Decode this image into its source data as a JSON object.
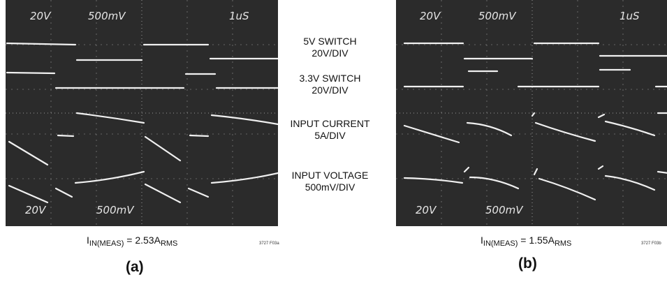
{
  "scopes": [
    {
      "id": "a",
      "top_readout": [
        "20V",
        "500mV",
        "1uS"
      ],
      "bottom_readout": [
        "20V",
        "500mV"
      ],
      "caption": {
        "main": "I",
        "sub1": "IN(MEAS)",
        "mid": " = 2.53A",
        "sub2": "RMS"
      },
      "figure_code": "3727 F03a",
      "label": "(a)"
    },
    {
      "id": "b",
      "top_readout": [
        "20V",
        "500mV",
        "1uS"
      ],
      "bottom_readout": [
        "20V",
        "500mV"
      ],
      "caption": {
        "main": "I",
        "sub1": "IN(MEAS)",
        "mid": " = 1.55A",
        "sub2": "RMS"
      },
      "figure_code": "3727 F03b",
      "label": "(b)"
    }
  ],
  "legend": [
    {
      "line1": "5V SWITCH",
      "line2": "20V/DIV"
    },
    {
      "line1": "3.3V SWITCH",
      "line2": "20V/DIV"
    },
    {
      "line1": "INPUT CURRENT",
      "line2": "5A/DIV"
    },
    {
      "line1": "INPUT VOLTAGE",
      "line2": "500mV/DIV"
    }
  ],
  "colors": {
    "screen": "#2b2b2b",
    "trace": "#f0f0f0",
    "grid": "#8a8a8a"
  }
}
